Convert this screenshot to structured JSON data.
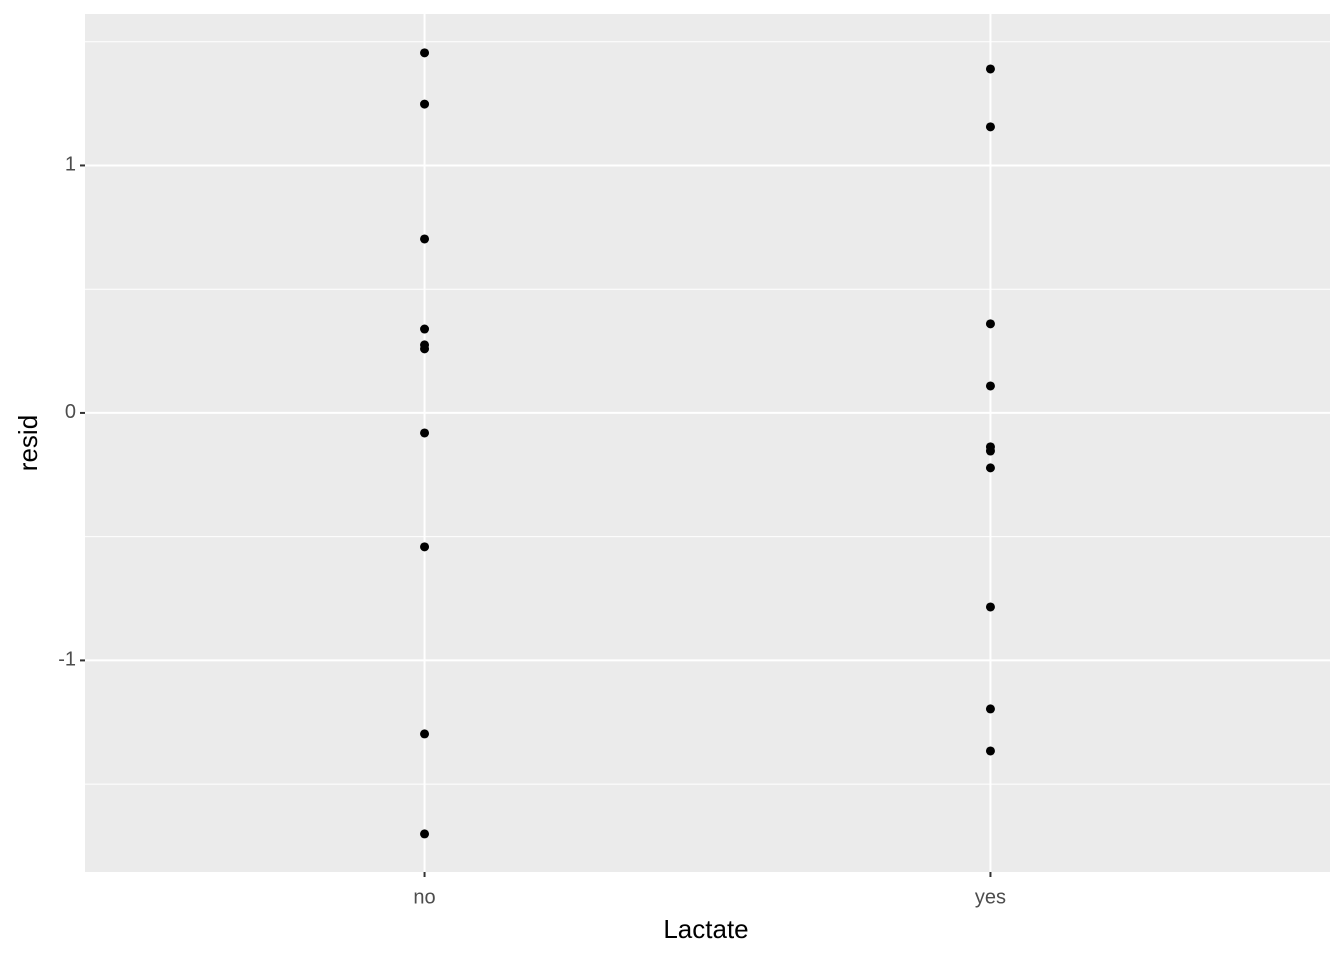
{
  "chart_data": {
    "type": "strip",
    "x_label": "Lactate",
    "y_label": "resid",
    "groups": [
      {
        "category": "no",
        "values": [
          1.455,
          1.248,
          0.703,
          0.339,
          0.275,
          0.259,
          -0.081,
          -0.541,
          -1.297,
          -1.701
        ]
      },
      {
        "category": "yes",
        "values": [
          1.39,
          1.156,
          0.36,
          0.109,
          -0.137,
          -0.154,
          -0.222,
          -0.784,
          -1.196,
          -1.366
        ]
      }
    ],
    "color": "#000000",
    "ylim": [
      -1.855,
      1.612
    ],
    "yticks": [
      -1,
      0,
      1
    ],
    "minor_yticks": [
      -1.5,
      -0.5,
      0.5,
      1.5
    ],
    "grid": true
  }
}
